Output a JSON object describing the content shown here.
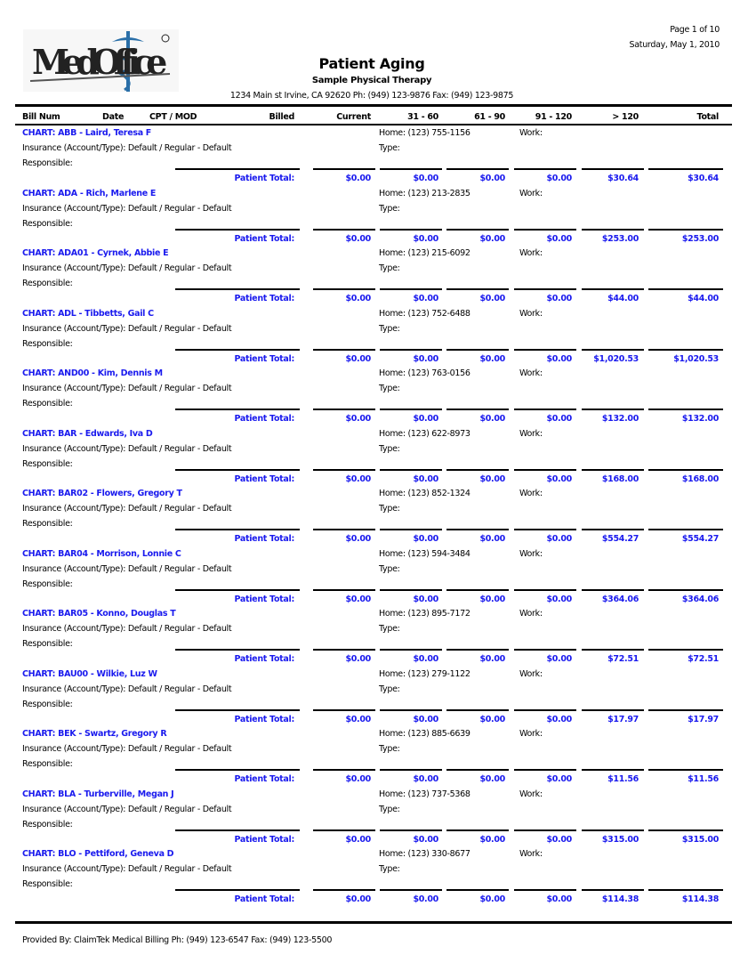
{
  "header": {
    "logo_text": "MedOffice",
    "page": "Page 1 of 10",
    "date": "Saturday, May 1, 2010",
    "title": "Patient Aging",
    "practice": "Sample Physical Therapy",
    "address": "1234 Main st Irvine, CA 92620 Ph: (949) 123-9876 Fax: (949) 123-9875"
  },
  "columns": [
    "Bill Num",
    "Date",
    "CPT / MOD",
    "Billed",
    "Current",
    "31 - 60",
    "61 - 90",
    "91 - 120",
    "> 120",
    "Total"
  ],
  "labels": {
    "insurance": "Insurance (Account/Type): Default / Regular - Default",
    "responsible": "Responsible:",
    "type": "Type:",
    "work": "Work:",
    "patient_total": "Patient Total:"
  },
  "patients": [
    {
      "chart": "CHART: ABB - Laird, Teresa F",
      "home": "Home: (123) 755-1156",
      "totals": [
        "$0.00",
        "$0.00",
        "$0.00",
        "$0.00",
        "$30.64",
        "$30.64"
      ]
    },
    {
      "chart": "CHART: ADA - Rich, Marlene E",
      "home": "Home: (123) 213-2835",
      "totals": [
        "$0.00",
        "$0.00",
        "$0.00",
        "$0.00",
        "$253.00",
        "$253.00"
      ]
    },
    {
      "chart": "CHART: ADA01 - Cyrnek, Abbie E",
      "home": "Home: (123) 215-6092",
      "totals": [
        "$0.00",
        "$0.00",
        "$0.00",
        "$0.00",
        "$44.00",
        "$44.00"
      ]
    },
    {
      "chart": "CHART: ADL - Tibbetts, Gail C",
      "home": "Home: (123) 752-6488",
      "totals": [
        "$0.00",
        "$0.00",
        "$0.00",
        "$0.00",
        "$1,020.53",
        "$1,020.53"
      ]
    },
    {
      "chart": "CHART: AND00 - Kim, Dennis M",
      "home": "Home: (123) 763-0156",
      "totals": [
        "$0.00",
        "$0.00",
        "$0.00",
        "$0.00",
        "$132.00",
        "$132.00"
      ]
    },
    {
      "chart": "CHART: BAR - Edwards, Iva D",
      "home": "Home: (123) 622-8973",
      "totals": [
        "$0.00",
        "$0.00",
        "$0.00",
        "$0.00",
        "$168.00",
        "$168.00"
      ]
    },
    {
      "chart": "CHART: BAR02 - Flowers, Gregory T",
      "home": "Home: (123) 852-1324",
      "totals": [
        "$0.00",
        "$0.00",
        "$0.00",
        "$0.00",
        "$554.27",
        "$554.27"
      ]
    },
    {
      "chart": "CHART: BAR04 - Morrison, Lonnie C",
      "home": "Home: (123) 594-3484",
      "totals": [
        "$0.00",
        "$0.00",
        "$0.00",
        "$0.00",
        "$364.06",
        "$364.06"
      ]
    },
    {
      "chart": "CHART: BAR05 - Konno, Douglas T",
      "home": "Home: (123) 895-7172",
      "totals": [
        "$0.00",
        "$0.00",
        "$0.00",
        "$0.00",
        "$72.51",
        "$72.51"
      ]
    },
    {
      "chart": "CHART: BAU00 - Wilkie, Luz W",
      "home": "Home: (123) 279-1122",
      "totals": [
        "$0.00",
        "$0.00",
        "$0.00",
        "$0.00",
        "$17.97",
        "$17.97"
      ]
    },
    {
      "chart": "CHART: BEK - Swartz, Gregory R",
      "home": "Home: (123) 885-6639",
      "totals": [
        "$0.00",
        "$0.00",
        "$0.00",
        "$0.00",
        "$11.56",
        "$11.56"
      ]
    },
    {
      "chart": "CHART: BLA - Turberville, Megan J",
      "home": "Home: (123) 737-5368",
      "totals": [
        "$0.00",
        "$0.00",
        "$0.00",
        "$0.00",
        "$315.00",
        "$315.00"
      ]
    },
    {
      "chart": "CHART: BLO - Pettiford, Geneva D",
      "home": "Home: (123) 330-8677",
      "totals": [
        "$0.00",
        "$0.00",
        "$0.00",
        "$0.00",
        "$114.38",
        "$114.38"
      ]
    }
  ],
  "footer": "Provided By: ClaimTek Medical Billing Ph: (949) 123-6547 Fax: (949) 123-5500"
}
